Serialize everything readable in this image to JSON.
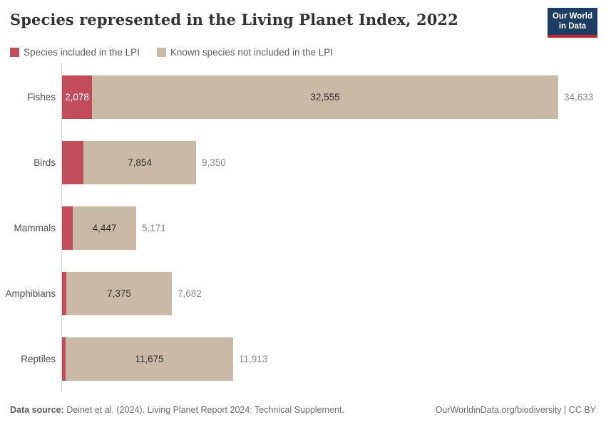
{
  "header": {
    "title": "Species represented in the Living Planet Index, 2022",
    "logo": {
      "line1": "Our World",
      "line2": "in Data",
      "bg_color": "#1d3d63",
      "accent_color": "#c5252e"
    }
  },
  "legend": [
    {
      "label": "Species included in the LPI",
      "color": "#c24b5c"
    },
    {
      "label": "Known species not included in the LPI",
      "color": "#cbb9a7"
    }
  ],
  "chart_data": {
    "type": "bar",
    "orientation": "horizontal",
    "stacked": true,
    "title": "Species represented in the Living Planet Index, 2022",
    "categories": [
      "Fishes",
      "Birds",
      "Mammals",
      "Amphibians",
      "Reptiles"
    ],
    "series": [
      {
        "name": "Species included in the LPI",
        "color": "#c24b5c",
        "values": [
          2078,
          1496,
          724,
          307,
          238
        ],
        "labels": [
          "2,078",
          "",
          "",
          "",
          ""
        ]
      },
      {
        "name": "Known species not included in the LPI",
        "color": "#cbb9a7",
        "values": [
          32555,
          7854,
          4447,
          7375,
          11675
        ],
        "labels": [
          "32,555",
          "7,854",
          "4,447",
          "7,375",
          "11,675"
        ]
      }
    ],
    "totals": [
      34633,
      9350,
      5171,
      7682,
      11913
    ],
    "total_labels": [
      "34,633",
      "9,350",
      "5,171",
      "7,682",
      "11,913"
    ],
    "xlim": [
      0,
      34633
    ],
    "grid": false,
    "legend_position": "top",
    "axis_color": "#d4d4d4"
  },
  "footer": {
    "source_label": "Data source:",
    "source_text": " Deinet et al. (2024). Living Planet Report 2024: Technical Supplement.",
    "rights": "OurWorldinData.org/biodiversity | CC BY"
  }
}
